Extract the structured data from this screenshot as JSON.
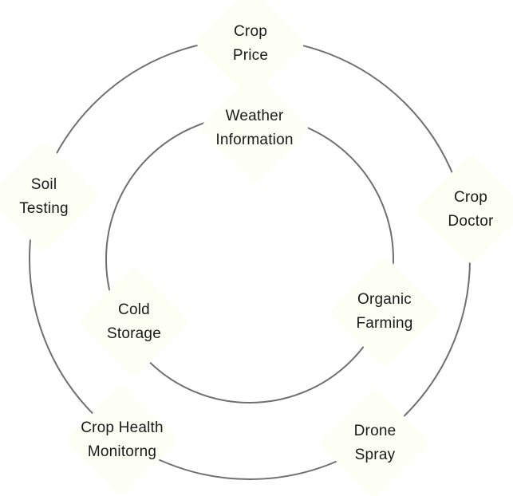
{
  "theme": {
    "ring_color": "#6f6f6f",
    "node_fill": "#fdfff4",
    "text_color": "#1a1a1a"
  },
  "outer_ring": {
    "nodes": [
      {
        "id": "crop-price",
        "lines": [
          "Crop",
          "Price"
        ]
      },
      {
        "id": "crop-doctor",
        "lines": [
          "Crop",
          "Doctor"
        ]
      },
      {
        "id": "drone-spray",
        "lines": [
          "Drone",
          "Spray"
        ]
      },
      {
        "id": "crop-health-monitorng",
        "lines": [
          "Crop Health",
          "Monitorng"
        ]
      },
      {
        "id": "soil-testing",
        "lines": [
          "Soil",
          "Testing"
        ]
      }
    ]
  },
  "inner_ring": {
    "nodes": [
      {
        "id": "weather-information",
        "lines": [
          "Weather",
          "Information"
        ]
      },
      {
        "id": "organic-farming",
        "lines": [
          "Organic",
          "Farming"
        ]
      },
      {
        "id": "cold-storage",
        "lines": [
          "Cold",
          "Storage"
        ]
      }
    ]
  }
}
